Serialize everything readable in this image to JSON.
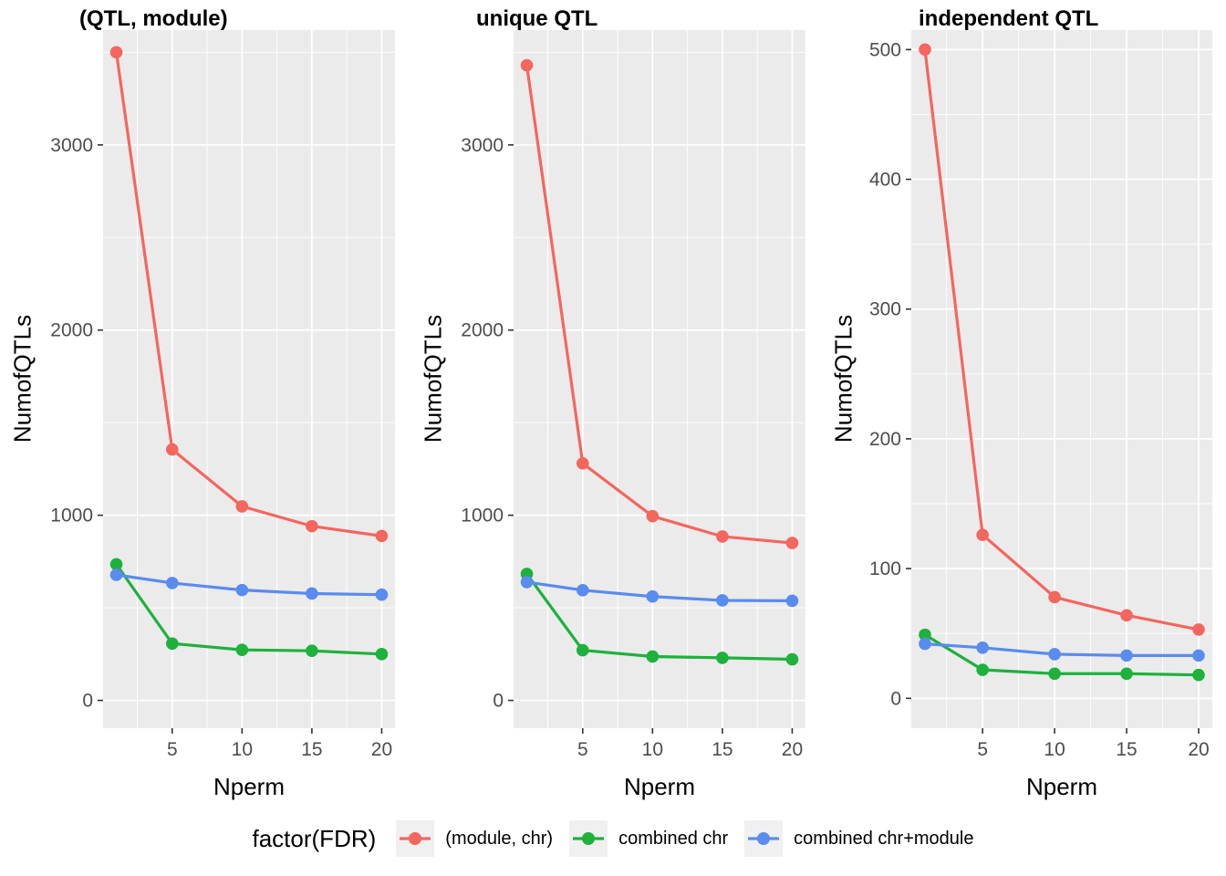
{
  "legend": {
    "title": "factor(FDR)",
    "items": [
      {
        "label": "(module, chr)",
        "color": "#F4665E"
      },
      {
        "label": "combined chr",
        "color": "#1EB13C"
      },
      {
        "label": "combined chr+module",
        "color": "#5A8BEE"
      }
    ]
  },
  "colors": {
    "panel_background": "#EBEBEB",
    "gridline": "#FFFFFF",
    "tick_text": "#4D4D4D",
    "tick_mark": "#333333",
    "legend_key_background": "#F0F0F0"
  },
  "chart_data": [
    {
      "type": "line",
      "title": "(QTL, module)",
      "xlabel": "Nperm",
      "ylabel": "NumofQTLs",
      "x": [
        1,
        5,
        10,
        15,
        20
      ],
      "xticks": [
        5,
        10,
        15,
        20
      ],
      "xminor": [
        2.5,
        7.5,
        12.5,
        17.5
      ],
      "xlim": [
        0.05,
        20.95
      ],
      "ylim": [
        -150,
        3620
      ],
      "yticks": [
        0,
        1000,
        2000,
        3000
      ],
      "yminor": [
        500,
        1500,
        2500,
        3500
      ],
      "series": [
        {
          "name": "(module, chr)",
          "color": "#F4665E",
          "values": [
            3500,
            1355,
            1048,
            941,
            888
          ]
        },
        {
          "name": "combined chr",
          "color": "#1EB13C",
          "values": [
            735,
            307,
            273,
            268,
            250
          ]
        },
        {
          "name": "combined chr+module",
          "color": "#5A8BEE",
          "values": [
            678,
            634,
            596,
            577,
            571
          ]
        }
      ]
    },
    {
      "type": "line",
      "title": "unique QTL",
      "xlabel": "Nperm",
      "ylabel": "NumofQTLs",
      "x": [
        1,
        5,
        10,
        15,
        20
      ],
      "xticks": [
        5,
        10,
        15,
        20
      ],
      "xminor": [
        2.5,
        7.5,
        12.5,
        17.5
      ],
      "xlim": [
        0.05,
        20.95
      ],
      "ylim": [
        -150,
        3620
      ],
      "yticks": [
        0,
        1000,
        2000,
        3000
      ],
      "yminor": [
        500,
        1500,
        2500,
        3500
      ],
      "series": [
        {
          "name": "(module, chr)",
          "color": "#F4665E",
          "values": [
            3430,
            1280,
            995,
            885,
            850
          ]
        },
        {
          "name": "combined chr",
          "color": "#1EB13C",
          "values": [
            683,
            271,
            237,
            230,
            222
          ]
        },
        {
          "name": "combined chr+module",
          "color": "#5A8BEE",
          "values": [
            639,
            595,
            561,
            540,
            538
          ]
        }
      ]
    },
    {
      "type": "line",
      "title": "independent QTL",
      "xlabel": "Nperm",
      "ylabel": "NumofQTLs",
      "x": [
        1,
        5,
        10,
        15,
        20
      ],
      "xticks": [
        5,
        10,
        15,
        20
      ],
      "xminor": [
        2.5,
        7.5,
        12.5,
        17.5
      ],
      "xlim": [
        0.05,
        20.95
      ],
      "ylim": [
        -23,
        515
      ],
      "yticks": [
        0,
        100,
        200,
        300,
        400,
        500
      ],
      "yminor": [
        50,
        150,
        250,
        350,
        450
      ],
      "series": [
        {
          "name": "(module, chr)",
          "color": "#F4665E",
          "values": [
            500,
            126,
            78,
            64,
            53
          ]
        },
        {
          "name": "combined chr",
          "color": "#1EB13C",
          "values": [
            49,
            22,
            19,
            19,
            18
          ]
        },
        {
          "name": "combined chr+module",
          "color": "#5A8BEE",
          "values": [
            42,
            39,
            34,
            33,
            33
          ]
        }
      ]
    }
  ]
}
